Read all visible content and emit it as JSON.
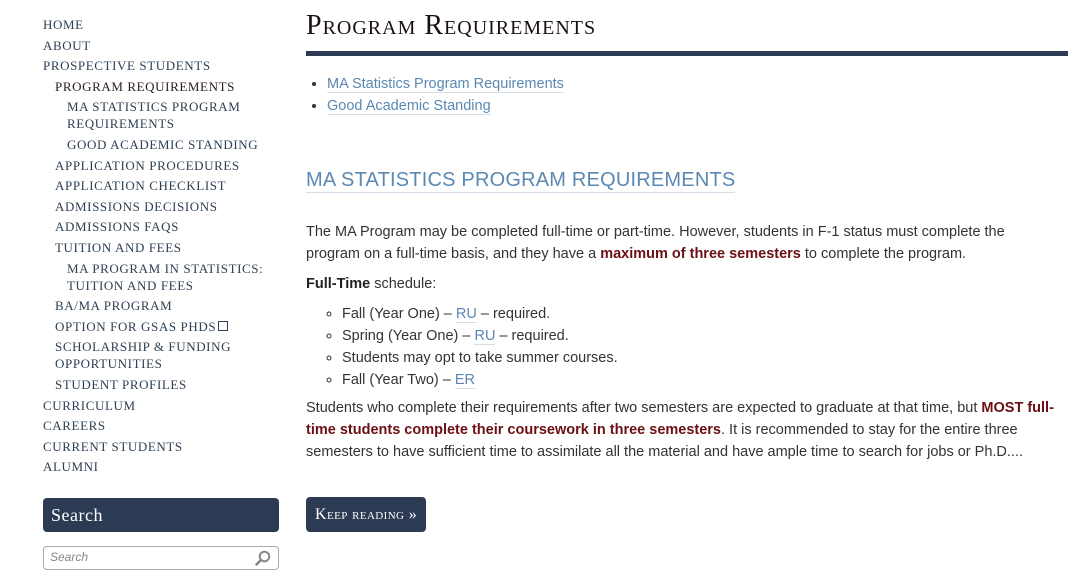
{
  "sidebar": {
    "items": [
      {
        "label": "Home",
        "level": 0
      },
      {
        "label": "About",
        "level": 0
      },
      {
        "label": "Prospective Students",
        "level": 0
      },
      {
        "label": "Program Requirements",
        "level": 1,
        "current": true
      },
      {
        "label": "MA Statistics Program Requirements",
        "level": 2
      },
      {
        "label": "Good Academic Standing",
        "level": 2
      },
      {
        "label": "Application Procedures",
        "level": 1
      },
      {
        "label": "Application Checklist",
        "level": 1
      },
      {
        "label": "Admissions Decisions",
        "level": 1
      },
      {
        "label": "Admissions FAQs",
        "level": 1
      },
      {
        "label": "Tuition and Fees",
        "level": 1
      },
      {
        "label": "MA Program in Statistics: Tuition and Fees",
        "level": 2
      },
      {
        "label": "BA/MA Program",
        "level": 1
      },
      {
        "label": "Option for GSAS PhDs",
        "level": 1,
        "external": true
      },
      {
        "label": "Scholarship & Funding Opportunities",
        "level": 1
      },
      {
        "label": "Student Profiles",
        "level": 1
      },
      {
        "label": "Curriculum",
        "level": 0
      },
      {
        "label": "Careers",
        "level": 0
      },
      {
        "label": "Current Students",
        "level": 0
      },
      {
        "label": "Alumni",
        "level": 0
      }
    ],
    "search_title": "Search",
    "search_placeholder": "Search"
  },
  "main": {
    "title": "Program Requirements",
    "toc": [
      "MA Statistics Program Requirements",
      "Good Academic Standing"
    ],
    "section_title": "MA STATISTICS PROGRAM REQUIREMENTS",
    "p1_a": "The MA Program may be completed full-time or part-time.  However, students in F-1 status must complete the program on a full-time basis, and they have a ",
    "p1_b": "maximum of three semesters",
    "p1_c": " to complete the program.",
    "p2_a": "Full-Time",
    "p2_b": " schedule:",
    "schedule": [
      {
        "pre": "Fall (Year One) – ",
        "link": "RU",
        "post": " – required."
      },
      {
        "pre": "Spring (Year One) – ",
        "link": "RU",
        "post": " – required."
      },
      {
        "pre": "Students may opt to take summer courses.",
        "link": null,
        "post": ""
      },
      {
        "pre": "Fall (Year Two) – ",
        "link": "ER",
        "post": ""
      }
    ],
    "p3_a": "Students who complete their requirements after two semesters are expected to graduate at that time, but ",
    "p3_b": "MOST full-time students complete their coursework in three semesters",
    "p3_c": ".  It is recommended to stay for the entire three semesters to have sufficient time to assimilate all the material and have ample time to search for jobs or Ph.D....",
    "keep_reading": "Keep reading »"
  },
  "colors": {
    "brand": "#2c3b53",
    "link": "#5b88b3",
    "emphasis": "#6b0f14"
  }
}
